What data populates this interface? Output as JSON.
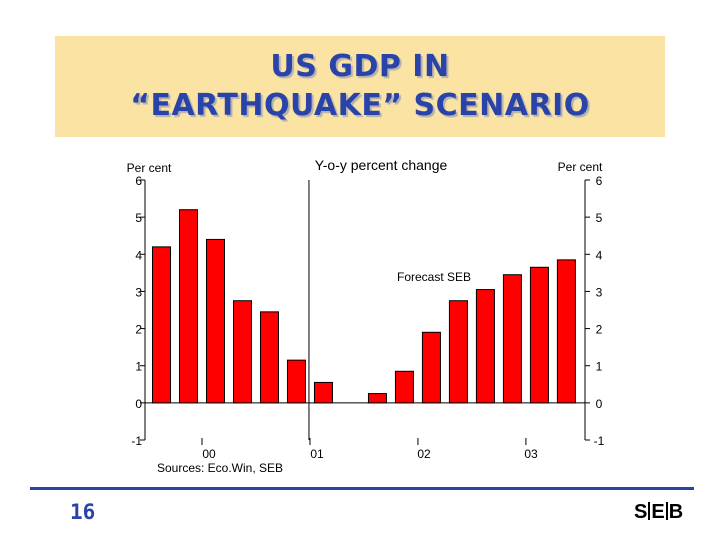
{
  "slide": {
    "title_line1": "US GDP IN",
    "title_line2": "“EARTHQUAKE” SCENARIO",
    "page_number": "16",
    "logo": "SEB",
    "colors": {
      "title": "#2a43a8",
      "title_bg": "#fbe3a4",
      "bar": "#ff0000"
    }
  },
  "chart_data": {
    "type": "bar",
    "title": "Y-o-y percent change",
    "left_axis_label": "Per cent",
    "right_axis_label": "Per cent",
    "source": "Sources: Eco.Win, SEB",
    "annotation": "Forecast SEB",
    "ylim": [
      -1,
      6
    ],
    "yticks": [
      "6",
      "5",
      "4",
      "3",
      "2",
      "1",
      "0",
      "-1"
    ],
    "xtick_labels": [
      "00",
      "01",
      "02",
      "03"
    ],
    "values": [
      4.2,
      5.2,
      4.4,
      2.75,
      2.45,
      1.15,
      0.55,
      0.0,
      0.25,
      0.85,
      1.9,
      2.75,
      3.05,
      3.45,
      3.65,
      3.85
    ],
    "forecast_starts_index": 6,
    "grid": false
  }
}
